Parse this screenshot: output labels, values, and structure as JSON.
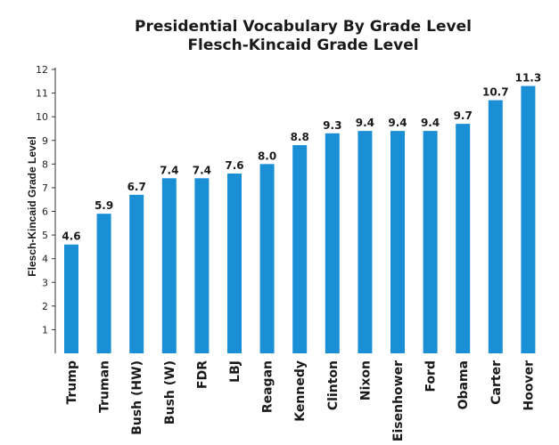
{
  "chart_data": {
    "type": "bar",
    "title": "Presidential Vocabulary By Grade Level",
    "subtitle": "Flesch-Kincaid Grade Level",
    "ylabel": "Flesch-Kincaid Grade Level",
    "xlabel": "",
    "ylim": [
      0,
      12
    ],
    "yticks": [
      1,
      2,
      3,
      4,
      5,
      6,
      7,
      8,
      9,
      10,
      11,
      12
    ],
    "grid": false,
    "legend": "none",
    "bar_color": "#1b8fd6",
    "categories": [
      "Trump",
      "Truman",
      "Bush (HW)",
      "Bush (W)",
      "FDR",
      "LBJ",
      "Reagan",
      "Kennedy",
      "Clinton",
      "Nixon",
      "Eisenhower",
      "Ford",
      "Obama",
      "Carter",
      "Hoover"
    ],
    "values": [
      4.6,
      5.9,
      6.7,
      7.4,
      7.4,
      7.6,
      8.0,
      8.8,
      9.3,
      9.4,
      9.4,
      9.4,
      9.7,
      10.7,
      11.3
    ],
    "value_labels": [
      "4.6",
      "5.9",
      "6.7",
      "7.4",
      "7.4",
      "7.6",
      "8.0",
      "8.8",
      "9.3",
      "9.4",
      "9.4",
      "9.4",
      "9.7",
      "10.7",
      "11.3"
    ]
  }
}
